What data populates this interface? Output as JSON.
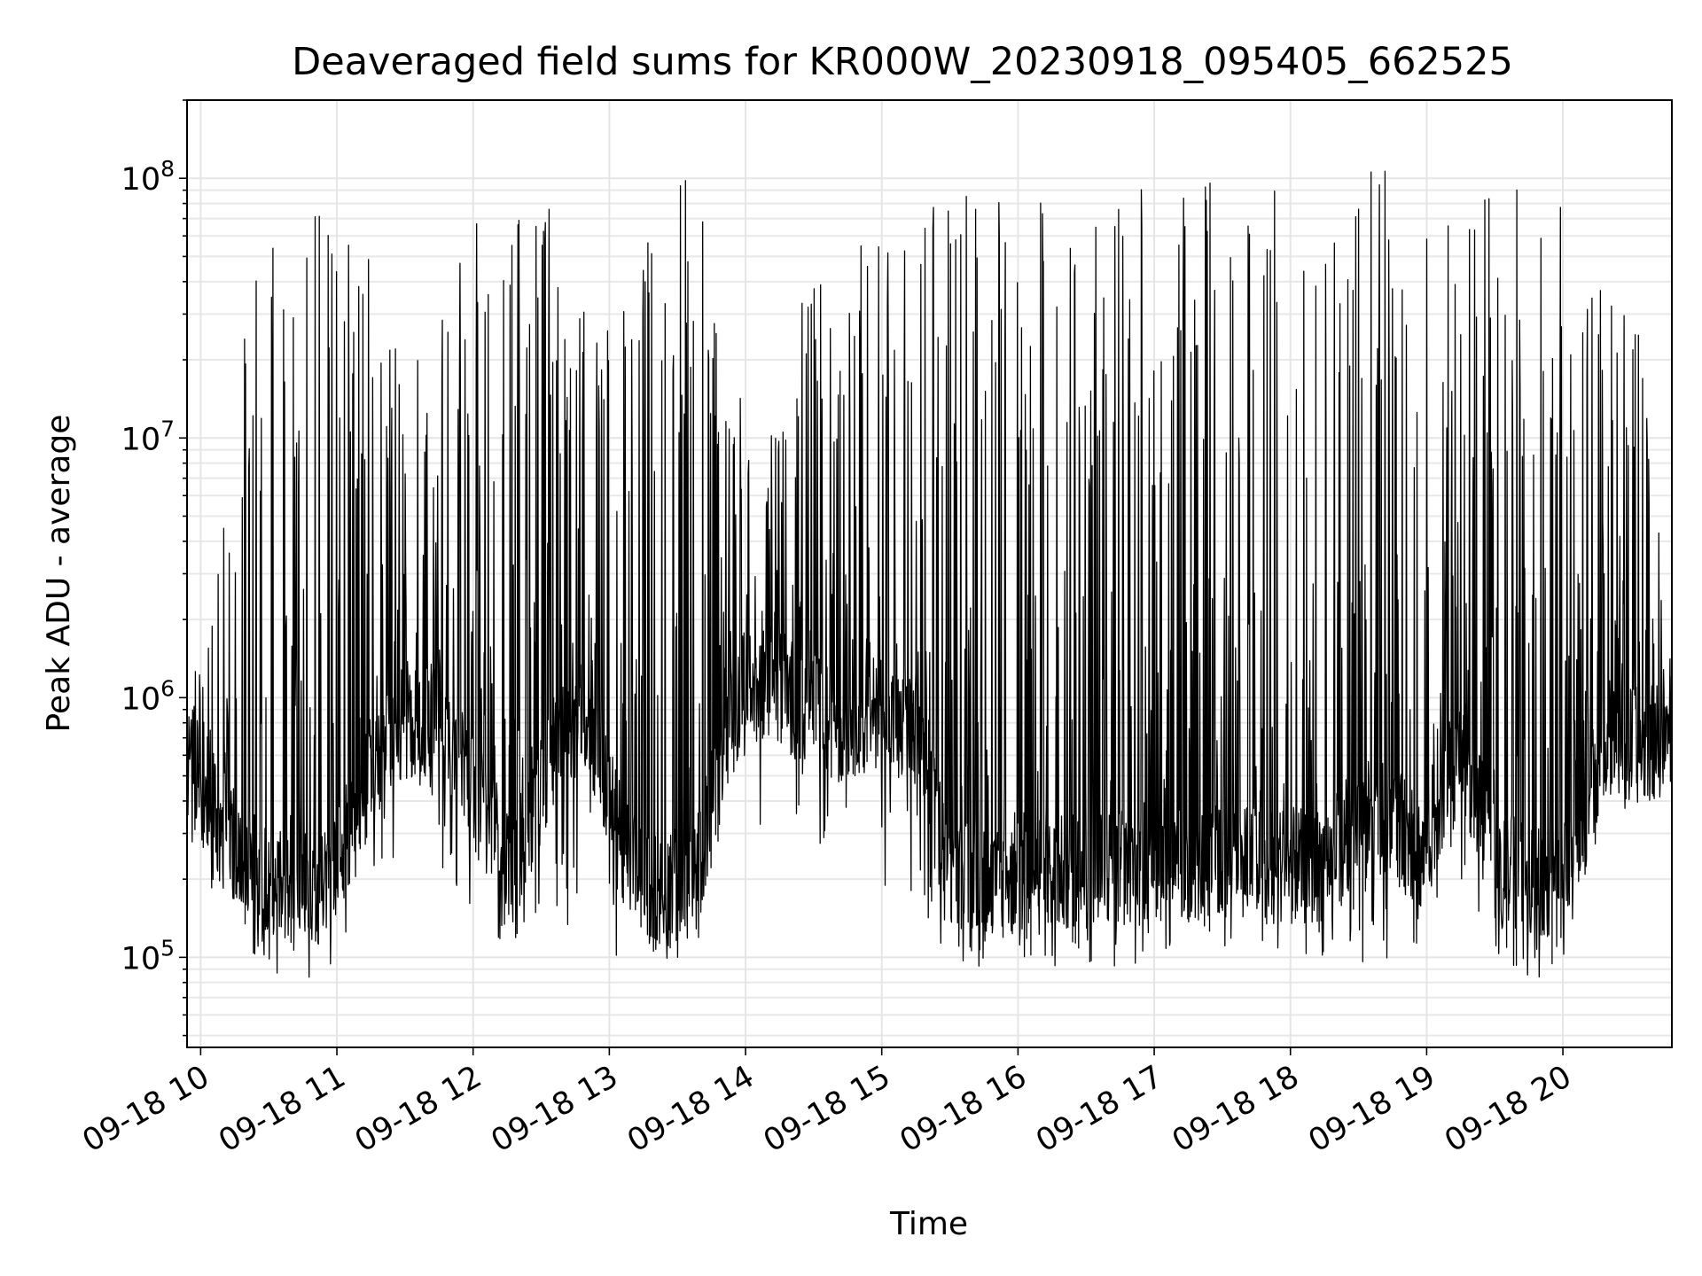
{
  "chart_data": {
    "type": "line",
    "title": "Deaveraged field sums for KR000W_20230918_095405_662525",
    "xlabel": "Time",
    "ylabel": "Peak ADU - average",
    "yscale": "log",
    "ylim": [
      45000,
      200000000
    ],
    "xlim": [
      "2023-09-18 09:54",
      "2023-09-18 20:48"
    ],
    "grid": true,
    "line_color": "#000000",
    "x_ticks": [
      {
        "value": "2023-09-18 10:00",
        "label": "09-18 10"
      },
      {
        "value": "2023-09-18 11:00",
        "label": "09-18 11"
      },
      {
        "value": "2023-09-18 12:00",
        "label": "09-18 12"
      },
      {
        "value": "2023-09-18 13:00",
        "label": "09-18 13"
      },
      {
        "value": "2023-09-18 14:00",
        "label": "09-18 14"
      },
      {
        "value": "2023-09-18 15:00",
        "label": "09-18 15"
      },
      {
        "value": "2023-09-18 16:00",
        "label": "09-18 16"
      },
      {
        "value": "2023-09-18 17:00",
        "label": "09-18 17"
      },
      {
        "value": "2023-09-18 18:00",
        "label": "09-18 18"
      },
      {
        "value": "2023-09-18 19:00",
        "label": "09-18 19"
      },
      {
        "value": "2023-09-18 20:00",
        "label": "09-18 20"
      }
    ],
    "y_ticks": [
      {
        "value": 100000,
        "base": "10",
        "exp": "5"
      },
      {
        "value": 1000000,
        "base": "10",
        "exp": "6"
      },
      {
        "value": 10000000,
        "base": "10",
        "exp": "7"
      },
      {
        "value": 100000000,
        "base": "10",
        "exp": "8"
      }
    ],
    "series": [
      {
        "x": [
          "2023-09-18 09:54",
          "2023-09-18 10:09",
          "2023-09-18 10:26",
          "2023-09-18 10:42",
          "2023-09-18 10:58",
          "2023-09-18 11:14",
          "2023-09-18 11:30",
          "2023-09-18 11:46",
          "2023-09-18 12:02",
          "2023-09-18 12:18",
          "2023-09-18 12:34",
          "2023-09-18 12:50",
          "2023-09-18 13:06",
          "2023-09-18 13:22",
          "2023-09-18 13:38",
          "2023-09-18 13:54",
          "2023-09-18 14:10",
          "2023-09-18 14:26",
          "2023-09-18 14:42",
          "2023-09-18 14:58",
          "2023-09-18 15:14",
          "2023-09-18 15:30",
          "2023-09-18 15:46",
          "2023-09-18 16:02",
          "2023-09-18 16:18",
          "2023-09-18 16:34",
          "2023-09-18 16:50",
          "2023-09-18 17:06",
          "2023-09-18 17:22",
          "2023-09-18 17:38",
          "2023-09-18 17:54",
          "2023-09-18 18:10",
          "2023-09-18 18:26",
          "2023-09-18 18:42",
          "2023-09-18 18:58",
          "2023-09-18 19:14",
          "2023-09-18 19:30",
          "2023-09-18 19:46",
          "2023-09-18 20:02",
          "2023-09-18 20:18",
          "2023-09-18 20:34",
          "2023-09-18 20:48"
        ],
        "baseline": [
          600000,
          320000,
          200000,
          180000,
          190000,
          500000,
          800000,
          850000,
          400000,
          220000,
          600000,
          900000,
          250000,
          180000,
          200000,
          900000,
          1200000,
          900000,
          800000,
          900000,
          700000,
          220000,
          190000,
          200000,
          210000,
          220000,
          230000,
          220000,
          230000,
          240000,
          230000,
          220000,
          280000,
          350000,
          250000,
          700000,
          230000,
          200000,
          200000,
          700000,
          650000,
          700000
        ],
        "peak": [
          1000000,
          4000000,
          80000000,
          70000000,
          90000000,
          50000000,
          20000000,
          30000000,
          80000000,
          90000000,
          80000000,
          40000000,
          30000000,
          90000000,
          110000000,
          20000000,
          10000000,
          40000000,
          50000000,
          70000000,
          80000000,
          90000000,
          100000000,
          110000000,
          90000000,
          80000000,
          100000000,
          90000000,
          100000000,
          110000000,
          100000000,
          90000000,
          100000000,
          110000000,
          90000000,
          80000000,
          90000000,
          100000000,
          90000000,
          60000000,
          30000000,
          1300000
        ],
        "trough": [
          280000,
          150000,
          90000,
          80000,
          90000,
          150000,
          250000,
          200000,
          150000,
          100000,
          120000,
          150000,
          90000,
          90000,
          100000,
          400000,
          300000,
          250000,
          250000,
          200000,
          150000,
          100000,
          90000,
          80000,
          80000,
          90000,
          90000,
          90000,
          100000,
          100000,
          100000,
          100000,
          90000,
          90000,
          100000,
          200000,
          90000,
          80000,
          80000,
          300000,
          400000,
          450000
        ]
      }
    ]
  }
}
